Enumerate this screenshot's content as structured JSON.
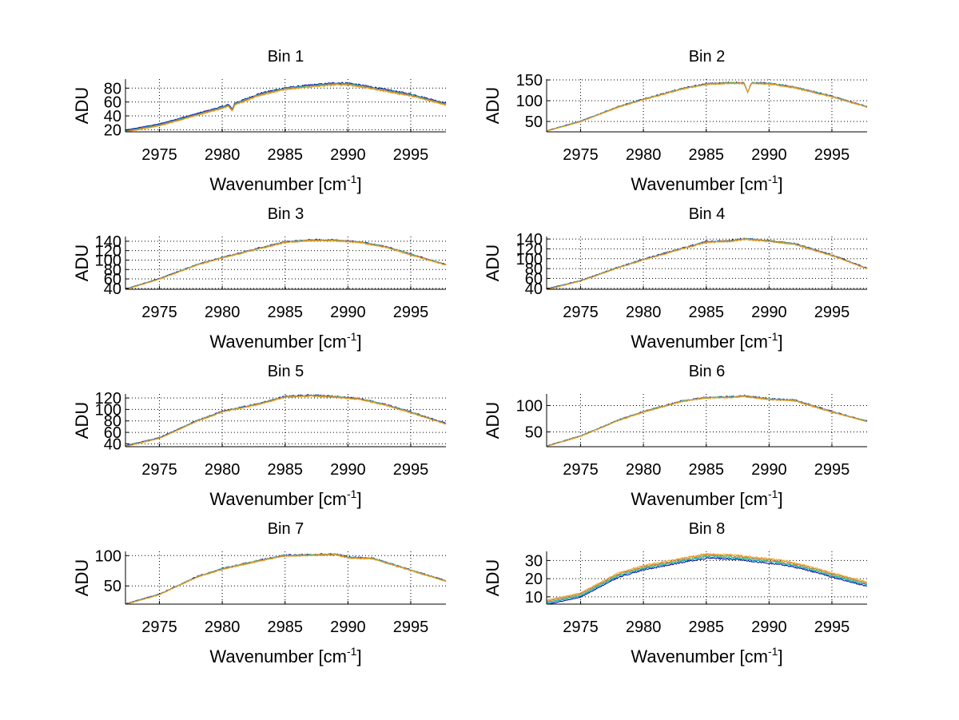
{
  "figure": {
    "colors": {
      "series": [
        "#0000a8",
        "#00a0c8",
        "#40c070",
        "#d07030",
        "#e8a020"
      ],
      "grid": "#000000",
      "axis": "#000000"
    }
  },
  "chart_data": [
    {
      "type": "line",
      "title": "Bin 1",
      "xlabel": "Wavenumber [cm",
      "xlabel_sup": "-1",
      "xlabel_tail": "]",
      "ylabel": "ADU",
      "xlim": [
        2972.3,
        2997.8
      ],
      "ylim": [
        17,
        93
      ],
      "xticks": [
        2975,
        2980,
        2985,
        2990,
        2995
      ],
      "xtick_labels": [
        "2975",
        "2980",
        "2985",
        "2990",
        "2995"
      ],
      "yticks": [
        20,
        40,
        60,
        80
      ],
      "ytick_labels": [
        "20",
        "40",
        "60",
        "80"
      ],
      "grid": true,
      "profile": {
        "x": [
          2972.3,
          2975,
          2978,
          2980,
          2980.5,
          2980.8,
          2981,
          2983,
          2985,
          2987,
          2989,
          2990,
          2992,
          2995,
          2997.8
        ],
        "y": [
          18,
          27,
          42,
          52,
          55,
          48,
          57,
          71,
          79,
          83,
          86,
          86,
          80,
          70,
          57
        ]
      },
      "series_offsets": [
        1.5,
        0.5,
        0,
        -0.5,
        -1.5
      ]
    },
    {
      "type": "line",
      "title": "Bin 2",
      "xlabel": "Wavenumber [cm",
      "xlabel_sup": "-1",
      "xlabel_tail": "]",
      "ylabel": "ADU",
      "xlim": [
        2972.3,
        2997.8
      ],
      "ylim": [
        25,
        152
      ],
      "xticks": [
        2975,
        2980,
        2985,
        2990,
        2995
      ],
      "xtick_labels": [
        "2975",
        "2980",
        "2985",
        "2990",
        "2995"
      ],
      "yticks": [
        50,
        100,
        150
      ],
      "ytick_labels": [
        "50",
        "100",
        "150"
      ],
      "grid": true,
      "profile": {
        "x": [
          2972.3,
          2975,
          2978,
          2980,
          2983,
          2985,
          2987,
          2988,
          2988.3,
          2988.6,
          2990,
          2992,
          2995,
          2997.8
        ],
        "y": [
          27,
          50,
          85,
          103,
          128,
          140,
          143,
          142,
          120,
          143,
          141,
          132,
          110,
          85
        ]
      },
      "series_offsets": [
        0.8,
        0.3,
        0,
        -0.3,
        -0.8
      ]
    },
    {
      "type": "line",
      "title": "Bin 3",
      "xlabel": "Wavenumber [cm",
      "xlabel_sup": "-1",
      "xlabel_tail": "]",
      "ylabel": "ADU",
      "xlim": [
        2972.3,
        2997.8
      ],
      "ylim": [
        38,
        150
      ],
      "xticks": [
        2975,
        2980,
        2985,
        2990,
        2995
      ],
      "xtick_labels": [
        "2975",
        "2980",
        "2985",
        "2990",
        "2995"
      ],
      "yticks": [
        40,
        60,
        80,
        100,
        120,
        140
      ],
      "ytick_labels": [
        "40",
        "60",
        "80",
        "100",
        "120",
        "140"
      ],
      "grid": true,
      "profile": {
        "x": [
          2972.3,
          2975,
          2978,
          2980,
          2983,
          2985,
          2987,
          2989,
          2991,
          2993,
          2995,
          2997.8
        ],
        "y": [
          38,
          60,
          90,
          105,
          125,
          138,
          142,
          142,
          138,
          128,
          112,
          90
        ]
      },
      "series_offsets": [
        0.8,
        0.3,
        0,
        -0.3,
        -0.8
      ]
    },
    {
      "type": "line",
      "title": "Bin 4",
      "xlabel": "Wavenumber [cm",
      "xlabel_sup": "-1",
      "xlabel_tail": "]",
      "ylabel": "ADU",
      "xlim": [
        2972.3,
        2997.8
      ],
      "ylim": [
        38,
        145
      ],
      "xticks": [
        2975,
        2980,
        2985,
        2990,
        2995
      ],
      "xtick_labels": [
        "2975",
        "2980",
        "2985",
        "2990",
        "2995"
      ],
      "yticks": [
        40,
        60,
        80,
        100,
        120,
        140
      ],
      "ytick_labels": [
        "40",
        "60",
        "80",
        "100",
        "120",
        "140"
      ],
      "grid": true,
      "profile": {
        "x": [
          2972.3,
          2975,
          2978,
          2980,
          2983,
          2985,
          2987,
          2988,
          2990,
          2992,
          2995,
          2997.8
        ],
        "y": [
          38,
          55,
          82,
          98,
          120,
          134,
          136,
          140,
          136,
          130,
          107,
          80
        ]
      },
      "series_offsets": [
        0.8,
        0.3,
        0,
        -0.3,
        -0.8
      ]
    },
    {
      "type": "line",
      "title": "Bin 5",
      "xlabel": "Wavenumber [cm",
      "xlabel_sup": "-1",
      "xlabel_tail": "]",
      "ylabel": "ADU",
      "xlim": [
        2972.3,
        2997.8
      ],
      "ylim": [
        35,
        127
      ],
      "xticks": [
        2975,
        2980,
        2985,
        2990,
        2995
      ],
      "xtick_labels": [
        "2975",
        "2980",
        "2985",
        "2990",
        "2995"
      ],
      "yticks": [
        40,
        60,
        80,
        100,
        120
      ],
      "ytick_labels": [
        "40",
        "60",
        "80",
        "100",
        "120"
      ],
      "grid": true,
      "profile": {
        "x": [
          2972.3,
          2975,
          2978,
          2980,
          2983,
          2985,
          2987,
          2989,
          2991,
          2993,
          2995,
          2997.8
        ],
        "y": [
          36,
          50,
          80,
          96,
          110,
          122,
          124,
          122,
          118,
          108,
          95,
          75
        ]
      },
      "series_offsets": [
        0.8,
        0.3,
        0,
        -0.3,
        -0.8
      ]
    },
    {
      "type": "line",
      "title": "Bin 6",
      "xlabel": "Wavenumber [cm",
      "xlabel_sup": "-1",
      "xlabel_tail": "]",
      "ylabel": "ADU",
      "xlim": [
        2972.3,
        2997.8
      ],
      "ylim": [
        22,
        122
      ],
      "xticks": [
        2975,
        2980,
        2985,
        2990,
        2995
      ],
      "xtick_labels": [
        "2975",
        "2980",
        "2985",
        "2990",
        "2995"
      ],
      "yticks": [
        50,
        100
      ],
      "ytick_labels": [
        "50",
        "100"
      ],
      "grid": true,
      "profile": {
        "x": [
          2972.3,
          2975,
          2978,
          2980,
          2983,
          2985,
          2987,
          2988,
          2990,
          2992,
          2995,
          2997.8
        ],
        "y": [
          23,
          42,
          72,
          88,
          108,
          115,
          116,
          118,
          112,
          110,
          88,
          70
        ]
      },
      "series_offsets": [
        0.6,
        0.2,
        0,
        -0.2,
        -0.6
      ]
    },
    {
      "type": "line",
      "title": "Bin 7",
      "xlabel": "Wavenumber [cm",
      "xlabel_sup": "-1",
      "xlabel_tail": "]",
      "ylabel": "ADU",
      "xlim": [
        2972.3,
        2997.8
      ],
      "ylim": [
        20,
        107
      ],
      "xticks": [
        2975,
        2980,
        2985,
        2990,
        2995
      ],
      "xtick_labels": [
        "2975",
        "2980",
        "2985",
        "2990",
        "2995"
      ],
      "yticks": [
        50,
        100
      ],
      "ytick_labels": [
        "50",
        "100"
      ],
      "grid": true,
      "profile": {
        "x": [
          2972.3,
          2975,
          2978,
          2980,
          2983,
          2985,
          2987,
          2989,
          2990,
          2992,
          2995,
          2997.8
        ],
        "y": [
          20,
          36,
          65,
          78,
          92,
          100,
          101,
          102,
          97,
          95,
          76,
          58
        ]
      },
      "series_offsets": [
        0.6,
        0.2,
        0,
        -0.2,
        -0.6
      ]
    },
    {
      "type": "line",
      "title": "Bin 8",
      "xlabel": "Wavenumber [cm",
      "xlabel_sup": "-1",
      "xlabel_tail": "]",
      "ylabel": "ADU",
      "xlim": [
        2972.3,
        2997.8
      ],
      "ylim": [
        6,
        35
      ],
      "xticks": [
        2975,
        2980,
        2985,
        2990,
        2995
      ],
      "xtick_labels": [
        "2975",
        "2980",
        "2985",
        "2990",
        "2995"
      ],
      "yticks": [
        10,
        20,
        30
      ],
      "ytick_labels": [
        "10",
        "20",
        "30"
      ],
      "grid": true,
      "profile": {
        "x": [
          2972.3,
          2975,
          2978,
          2980,
          2983,
          2985,
          2987,
          2989,
          2991,
          2993,
          2995,
          2997.8
        ],
        "y": [
          7,
          11,
          22,
          26,
          30,
          32.5,
          32,
          30.5,
          29,
          26,
          22,
          17
        ]
      },
      "series_offsets": [
        -1.2,
        -0.5,
        0,
        0.6,
        1.2
      ]
    }
  ]
}
